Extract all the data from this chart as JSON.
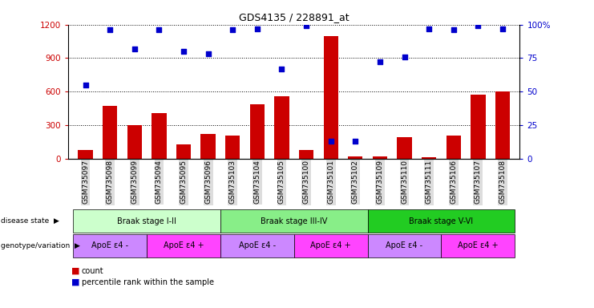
{
  "title": "GDS4135 / 228891_at",
  "samples": [
    "GSM735097",
    "GSM735098",
    "GSM735099",
    "GSM735094",
    "GSM735095",
    "GSM735096",
    "GSM735103",
    "GSM735104",
    "GSM735105",
    "GSM735100",
    "GSM735101",
    "GSM735102",
    "GSM735109",
    "GSM735110",
    "GSM735111",
    "GSM735106",
    "GSM735107",
    "GSM735108"
  ],
  "counts": [
    80,
    470,
    300,
    410,
    130,
    220,
    210,
    490,
    560,
    80,
    1100,
    20,
    20,
    190,
    10,
    210,
    570,
    600
  ],
  "percentiles": [
    55,
    96,
    82,
    96,
    80,
    78,
    96,
    97,
    67,
    99,
    13,
    13,
    72,
    76,
    97,
    96,
    99,
    97
  ],
  "bar_color": "#cc0000",
  "dot_color": "#0000cc",
  "ylim_left": [
    0,
    1200
  ],
  "ylim_right": [
    0,
    100
  ],
  "yticks_left": [
    0,
    300,
    600,
    900,
    1200
  ],
  "yticks_right": [
    0,
    25,
    50,
    75,
    100
  ],
  "disease_state_groups": [
    {
      "label": "Braak stage I-II",
      "start": 0,
      "end": 6,
      "color": "#ccffcc"
    },
    {
      "label": "Braak stage III-IV",
      "start": 6,
      "end": 12,
      "color": "#88ee88"
    },
    {
      "label": "Braak stage V-VI",
      "start": 12,
      "end": 18,
      "color": "#22cc22"
    }
  ],
  "genotype_groups": [
    {
      "label": "ApoE ε4 -",
      "start": 0,
      "end": 3,
      "color": "#cc88ff"
    },
    {
      "label": "ApoE ε4 +",
      "start": 3,
      "end": 6,
      "color": "#ff44ff"
    },
    {
      "label": "ApoE ε4 -",
      "start": 6,
      "end": 9,
      "color": "#cc88ff"
    },
    {
      "label": "ApoE ε4 +",
      "start": 9,
      "end": 12,
      "color": "#ff44ff"
    },
    {
      "label": "ApoE ε4 -",
      "start": 12,
      "end": 15,
      "color": "#cc88ff"
    },
    {
      "label": "ApoE ε4 +",
      "start": 15,
      "end": 18,
      "color": "#ff44ff"
    }
  ],
  "disease_state_label": "disease state",
  "genotype_label": "genotype/variation",
  "legend_count_label": "count",
  "legend_percentile_label": "percentile rank within the sample",
  "background_color": "#ffffff",
  "xtick_bg": "#dddddd"
}
